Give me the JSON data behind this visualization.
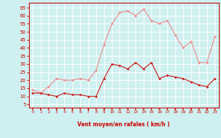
{
  "x": [
    0,
    1,
    2,
    3,
    4,
    5,
    6,
    7,
    8,
    9,
    10,
    11,
    12,
    13,
    14,
    15,
    16,
    17,
    18,
    19,
    20,
    21,
    22,
    23
  ],
  "wind_avg": [
    12,
    12,
    11,
    10,
    12,
    11,
    11,
    10,
    10,
    21,
    30,
    29,
    27,
    31,
    27,
    31,
    21,
    23,
    22,
    21,
    19,
    17,
    16,
    21
  ],
  "wind_gust": [
    14,
    12,
    16,
    21,
    20,
    20,
    21,
    20,
    26,
    42,
    55,
    62,
    63,
    60,
    64,
    57,
    55,
    57,
    48,
    40,
    44,
    31,
    31,
    47
  ],
  "background_color": "#cff0f0",
  "grid_color": "#ffffff",
  "avg_color": "#cc2222",
  "gust_color": "#f09090",
  "axis_color": "#cc0000",
  "xlabel": "Vent moyen/en rafales ( km/h )",
  "ylabel_ticks": [
    5,
    10,
    15,
    20,
    25,
    30,
    35,
    40,
    45,
    50,
    55,
    60,
    65
  ],
  "ylim": [
    3,
    68
  ],
  "xlim": [
    -0.5,
    23.5
  ],
  "arrow_angles": [
    210,
    225,
    225,
    240,
    240,
    240,
    225,
    270,
    270,
    270,
    270,
    270,
    270,
    270,
    270,
    270,
    270,
    270,
    270,
    270,
    270,
    270,
    270,
    270
  ]
}
